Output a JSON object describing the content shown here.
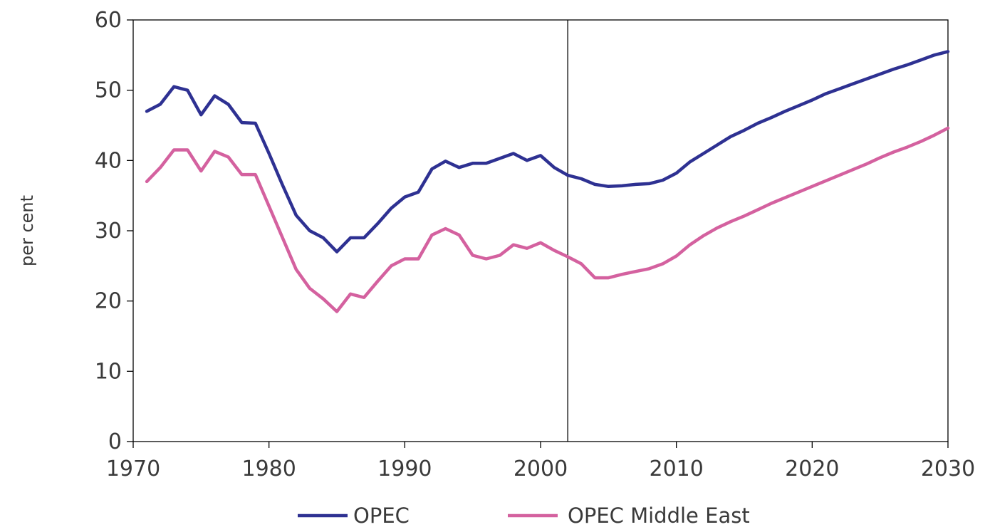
{
  "chart_data": {
    "type": "line",
    "title": "",
    "xlabel": "",
    "ylabel": "per cent",
    "xlim": [
      1970,
      2030
    ],
    "ylim": [
      0,
      60
    ],
    "x_ticks": [
      1970,
      1980,
      1990,
      2000,
      2010,
      2020,
      2030
    ],
    "y_ticks": [
      0,
      10,
      20,
      30,
      40,
      50,
      60
    ],
    "grid": false,
    "legend_position": "bottom",
    "reference_line_x": 2002,
    "x": [
      1971,
      1972,
      1973,
      1974,
      1975,
      1976,
      1977,
      1978,
      1979,
      1980,
      1981,
      1982,
      1983,
      1984,
      1985,
      1986,
      1987,
      1988,
      1989,
      1990,
      1991,
      1992,
      1993,
      1994,
      1995,
      1996,
      1997,
      1998,
      1999,
      2000,
      2001,
      2002,
      2003,
      2004,
      2005,
      2006,
      2007,
      2008,
      2009,
      2010,
      2011,
      2012,
      2013,
      2014,
      2015,
      2016,
      2017,
      2018,
      2019,
      2020,
      2021,
      2022,
      2023,
      2024,
      2025,
      2026,
      2027,
      2028,
      2029,
      2030
    ],
    "series": [
      {
        "name": "OPEC",
        "color": "#2e3192",
        "values": [
          47.0,
          48.0,
          50.5,
          50.0,
          46.5,
          49.2,
          48.0,
          45.4,
          45.3,
          41.0,
          36.5,
          32.2,
          30.0,
          29.0,
          27.0,
          29.0,
          29.0,
          31.0,
          33.2,
          34.8,
          35.5,
          38.8,
          39.9,
          39.0,
          39.6,
          39.6,
          40.3,
          41.0,
          40.0,
          40.7,
          39.0,
          37.9,
          37.4,
          36.6,
          36.3,
          36.4,
          36.6,
          36.7,
          37.2,
          38.2,
          39.8,
          41.0,
          42.2,
          43.4,
          44.3,
          45.3,
          46.1,
          47.0,
          47.8,
          48.6,
          49.5,
          50.2,
          50.9,
          51.6,
          52.3,
          53.0,
          53.6,
          54.3,
          55.0,
          55.5
        ]
      },
      {
        "name": "OPEC Middle East",
        "color": "#d4619f",
        "values": [
          37.0,
          39.0,
          41.5,
          41.5,
          38.5,
          41.3,
          40.5,
          38.0,
          38.0,
          33.5,
          29.0,
          24.5,
          21.8,
          20.3,
          18.5,
          21.0,
          20.5,
          22.8,
          25.0,
          26.0,
          26.0,
          29.4,
          30.3,
          29.4,
          26.5,
          26.0,
          26.5,
          28.0,
          27.5,
          28.3,
          27.2,
          26.3,
          25.3,
          23.3,
          23.3,
          23.8,
          24.2,
          24.6,
          25.3,
          26.4,
          28.0,
          29.3,
          30.4,
          31.3,
          32.1,
          33.0,
          33.9,
          34.7,
          35.5,
          36.3,
          37.1,
          37.9,
          38.7,
          39.5,
          40.4,
          41.2,
          41.9,
          42.7,
          43.6,
          44.6
        ]
      }
    ]
  }
}
